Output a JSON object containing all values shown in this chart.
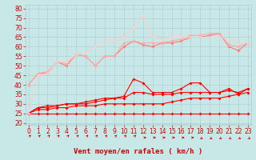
{
  "x": [
    0,
    1,
    2,
    3,
    4,
    5,
    6,
    7,
    8,
    9,
    10,
    11,
    12,
    13,
    14,
    15,
    16,
    17,
    18,
    19,
    20,
    21,
    22,
    23
  ],
  "series": [
    {
      "color": "#FF0000",
      "alpha": 1.0,
      "linewidth": 0.8,
      "y": [
        25,
        25,
        25,
        25,
        25,
        25,
        25,
        25,
        25,
        25,
        25,
        25,
        25,
        25,
        25,
        25,
        25,
        25,
        25,
        25,
        25,
        25,
        25,
        25
      ]
    },
    {
      "color": "#FF0000",
      "alpha": 1.0,
      "linewidth": 0.8,
      "y": [
        25,
        27,
        27,
        28,
        28,
        29,
        29,
        29,
        30,
        30,
        30,
        30,
        30,
        30,
        30,
        31,
        32,
        33,
        33,
        33,
        33,
        34,
        35,
        36
      ]
    },
    {
      "color": "#FF0000",
      "alpha": 1.0,
      "linewidth": 0.8,
      "y": [
        25,
        28,
        28,
        29,
        30,
        30,
        30,
        31,
        32,
        33,
        33,
        36,
        36,
        35,
        35,
        35,
        36,
        36,
        36,
        36,
        36,
        37,
        36,
        38
      ]
    },
    {
      "color": "#FF0000",
      "alpha": 1.0,
      "linewidth": 0.8,
      "y": [
        25,
        28,
        29,
        29,
        30,
        30,
        31,
        32,
        33,
        33,
        34,
        43,
        41,
        36,
        36,
        36,
        38,
        41,
        41,
        36,
        36,
        38,
        35,
        38
      ]
    },
    {
      "color": "#FF7777",
      "alpha": 1.0,
      "linewidth": 0.8,
      "y": [
        40,
        46,
        46,
        52,
        50,
        56,
        55,
        50,
        55,
        55,
        60,
        63,
        61,
        60,
        62,
        62,
        63,
        65,
        65,
        66,
        67,
        60,
        58,
        62
      ]
    },
    {
      "color": "#FFAAAA",
      "alpha": 1.0,
      "linewidth": 0.8,
      "y": [
        40,
        46,
        47,
        52,
        51,
        56,
        55,
        50,
        55,
        55,
        62,
        63,
        62,
        62,
        62,
        63,
        64,
        66,
        66,
        67,
        67,
        61,
        60,
        62
      ]
    },
    {
      "color": "#FFCCCC",
      "alpha": 1.0,
      "linewidth": 0.8,
      "y": [
        25,
        45,
        46,
        52,
        52,
        56,
        57,
        60,
        63,
        63,
        65,
        70,
        77,
        65,
        64,
        65,
        65,
        65,
        65,
        65,
        65,
        64,
        62,
        62
      ]
    }
  ],
  "xlabel": "Vent moyen/en rafales ( km/h )",
  "xlabel_color": "#CC0000",
  "xlabel_fontsize": 6.5,
  "ylabel_ticks": [
    20,
    25,
    30,
    35,
    40,
    45,
    50,
    55,
    60,
    65,
    70,
    75,
    80
  ],
  "ylim": [
    19,
    82
  ],
  "xlim": [
    -0.3,
    23.3
  ],
  "xticks": [
    0,
    1,
    2,
    3,
    4,
    5,
    6,
    7,
    8,
    9,
    10,
    11,
    12,
    13,
    14,
    15,
    16,
    17,
    18,
    19,
    20,
    21,
    22,
    23
  ],
  "bg_color": "#C8E8E8",
  "grid_color": "#A8CCCC",
  "tick_color": "#CC0000",
  "tick_fontsize": 5.5,
  "arrow_color": "#CC0000",
  "markersize": 2.0
}
